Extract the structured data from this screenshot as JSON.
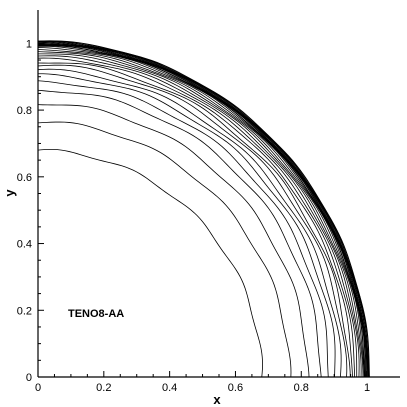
{
  "chart_data": {
    "type": "line",
    "xlabel": "x",
    "ylabel": "y",
    "xlim": [
      0,
      1.1
    ],
    "ylim": [
      0,
      1.1
    ],
    "x_ticks": [
      "0",
      "0.2",
      "0.4",
      "0.6",
      "0.8",
      "1"
    ],
    "y_ticks": [
      "0",
      "0.2",
      "0.4",
      "0.6",
      "0.8",
      "1"
    ],
    "x_tick_values": [
      0,
      0.2,
      0.4,
      0.6,
      0.8,
      1
    ],
    "y_tick_values": [
      0,
      0.2,
      0.4,
      0.6,
      0.8,
      1
    ],
    "grid": false,
    "legend": "none",
    "annotation": "TENO8-AA",
    "contour_levels": "quarter-circle contour lines centered at origin",
    "contour_radii": [
      0.68,
      0.765,
      0.82,
      0.86,
      0.885,
      0.905,
      0.92,
      0.935,
      0.945,
      0.955,
      0.963,
      0.97,
      0.976,
      0.981,
      0.986,
      0.99,
      0.993,
      0.996,
      0.998,
      1.0,
      1.002,
      1.004,
      1.006,
      1.008
    ],
    "line_color": "#000000"
  }
}
